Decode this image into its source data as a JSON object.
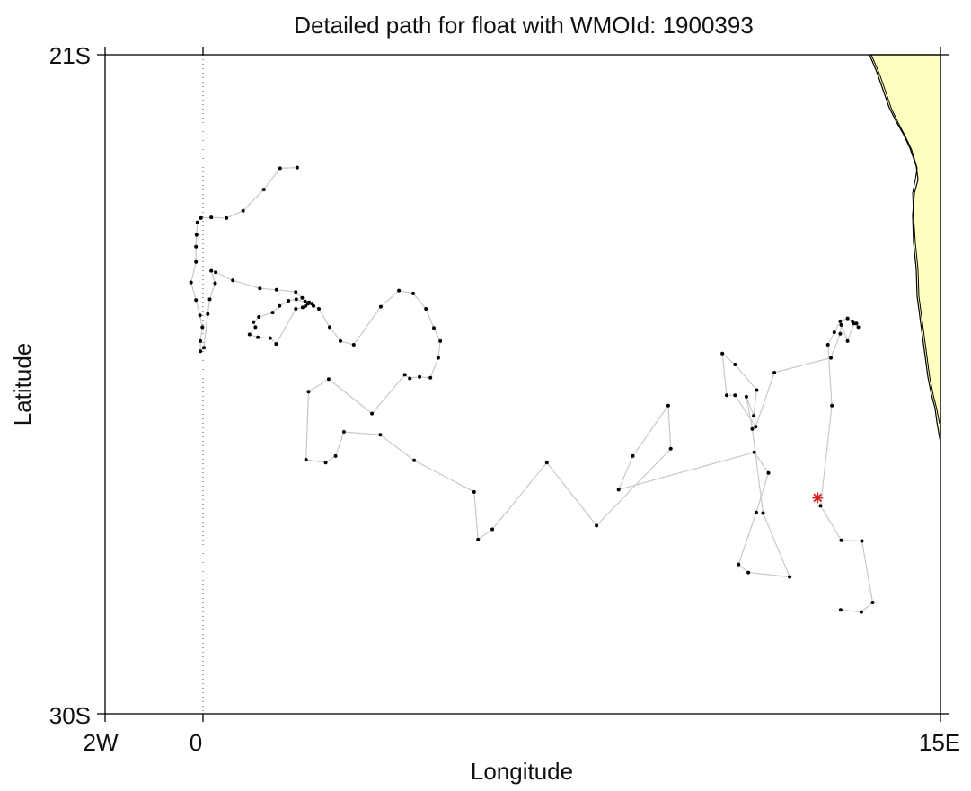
{
  "title": "Detailed path for float with WMOId: 1900393",
  "xlabel": "Longitude",
  "ylabel": "Latitude",
  "tick_labels": {
    "x_left": "2W",
    "x_zero": "0",
    "x_right": "15E",
    "y_top": "21S",
    "y_bottom": "30S"
  },
  "colors": {
    "land": "#ffffc0",
    "coast": "#000000",
    "track": "#c8c8c8",
    "point": "#000000",
    "marker": "#d42020"
  },
  "chart_data": {
    "type": "scatter",
    "title": "Detailed path for float with WMOId: 1900393",
    "xlabel": "Longitude",
    "ylabel": "Latitude",
    "xlim": [
      -2,
      15
    ],
    "ylim": [
      -30,
      -21
    ],
    "grid": false,
    "meridian_0_dotted": true,
    "position_marker": {
      "symbol": "asterisk",
      "lon": 12.5,
      "lat": -27.05
    },
    "track": [
      [
        1.91,
        -22.54
      ],
      [
        1.56,
        -22.55
      ],
      [
        1.23,
        -22.84
      ],
      [
        0.81,
        -23.13
      ],
      [
        0.47,
        -23.23
      ],
      [
        0.16,
        -23.22
      ],
      [
        -0.05,
        -23.23
      ],
      [
        -0.12,
        -23.29
      ],
      [
        -0.14,
        -23.46
      ],
      [
        -0.15,
        -23.62
      ],
      [
        -0.15,
        -23.83
      ],
      [
        -0.25,
        -24.11
      ],
      [
        -0.15,
        -24.35
      ],
      [
        -0.07,
        -24.56
      ],
      [
        -0.02,
        -24.72
      ],
      [
        -0.06,
        -24.91
      ],
      [
        -0.06,
        -25.05
      ],
      [
        0.01,
        -25.0
      ],
      [
        0.09,
        -24.54
      ],
      [
        0.13,
        -24.34
      ],
      [
        0.24,
        -24.12
      ],
      [
        0.16,
        -23.95
      ],
      [
        0.25,
        -23.97
      ],
      [
        0.6,
        -24.08
      ],
      [
        1.15,
        -24.19
      ],
      [
        1.49,
        -24.21
      ],
      [
        1.88,
        -24.24
      ],
      [
        2.01,
        -24.32
      ],
      [
        2.07,
        -24.37
      ],
      [
        2.15,
        -24.38
      ],
      [
        2.21,
        -24.4
      ],
      [
        1.89,
        -24.34
      ],
      [
        1.73,
        -24.36
      ],
      [
        1.55,
        -24.43
      ],
      [
        1.41,
        -24.52
      ],
      [
        1.13,
        -24.58
      ],
      [
        1.02,
        -24.65
      ],
      [
        1.06,
        -24.72
      ],
      [
        0.94,
        -24.82
      ],
      [
        1.11,
        -24.86
      ],
      [
        1.36,
        -24.87
      ],
      [
        1.48,
        -24.95
      ],
      [
        1.88,
        -24.47
      ],
      [
        2.02,
        -24.45
      ],
      [
        2.08,
        -24.43
      ],
      [
        2.13,
        -24.4
      ],
      [
        2.24,
        -24.43
      ],
      [
        2.35,
        -24.47
      ],
      [
        2.57,
        -24.72
      ],
      [
        2.79,
        -24.91
      ],
      [
        3.06,
        -24.96
      ],
      [
        3.61,
        -24.44
      ],
      [
        3.98,
        -24.22
      ],
      [
        4.27,
        -24.26
      ],
      [
        4.53,
        -24.47
      ],
      [
        4.69,
        -24.73
      ],
      [
        4.82,
        -24.91
      ],
      [
        4.78,
        -25.14
      ],
      [
        4.62,
        -25.41
      ],
      [
        4.4,
        -25.4
      ],
      [
        4.2,
        -25.42
      ],
      [
        4.1,
        -25.37
      ],
      [
        3.43,
        -25.9
      ],
      [
        2.55,
        -25.43
      ],
      [
        2.14,
        -25.6
      ],
      [
        2.09,
        -26.53
      ],
      [
        2.49,
        -26.57
      ],
      [
        2.69,
        -26.48
      ],
      [
        2.86,
        -26.15
      ],
      [
        3.6,
        -26.19
      ],
      [
        4.29,
        -26.54
      ],
      [
        5.51,
        -26.97
      ],
      [
        5.59,
        -27.62
      ],
      [
        5.88,
        -27.48
      ],
      [
        6.99,
        -26.57
      ],
      [
        8.0,
        -27.43
      ],
      [
        9.51,
        -26.38
      ],
      [
        9.46,
        -25.79
      ],
      [
        8.74,
        -26.48
      ],
      [
        8.45,
        -26.94
      ],
      [
        11.21,
        -26.43
      ],
      [
        11.5,
        -26.71
      ],
      [
        11.25,
        -27.25
      ],
      [
        10.89,
        -27.96
      ],
      [
        11.09,
        -28.07
      ],
      [
        11.93,
        -28.13
      ],
      [
        11.39,
        -27.26
      ],
      [
        11.17,
        -26.11
      ],
      [
        11.05,
        -25.67
      ],
      [
        11.2,
        -25.93
      ],
      [
        11.26,
        -25.58
      ],
      [
        10.82,
        -25.23
      ],
      [
        10.56,
        -25.08
      ],
      [
        10.65,
        -25.65
      ],
      [
        10.82,
        -25.65
      ],
      [
        11.24,
        -26.08
      ],
      [
        11.62,
        -25.34
      ],
      [
        12.77,
        -25.14
      ],
      [
        12.96,
        -24.81
      ],
      [
        12.98,
        -24.69
      ],
      [
        13.11,
        -24.91
      ],
      [
        13.24,
        -24.67
      ],
      [
        13.33,
        -24.72
      ],
      [
        13.29,
        -24.67
      ],
      [
        13.21,
        -24.64
      ],
      [
        13.11,
        -24.6
      ],
      [
        12.96,
        -24.64
      ],
      [
        12.84,
        -24.79
      ],
      [
        12.71,
        -24.96
      ],
      [
        12.79,
        -25.79
      ],
      [
        12.56,
        -27.16
      ],
      [
        12.98,
        -27.63
      ],
      [
        13.4,
        -27.64
      ],
      [
        13.62,
        -28.48
      ],
      [
        13.39,
        -28.61
      ],
      [
        12.97,
        -28.58
      ]
    ]
  }
}
